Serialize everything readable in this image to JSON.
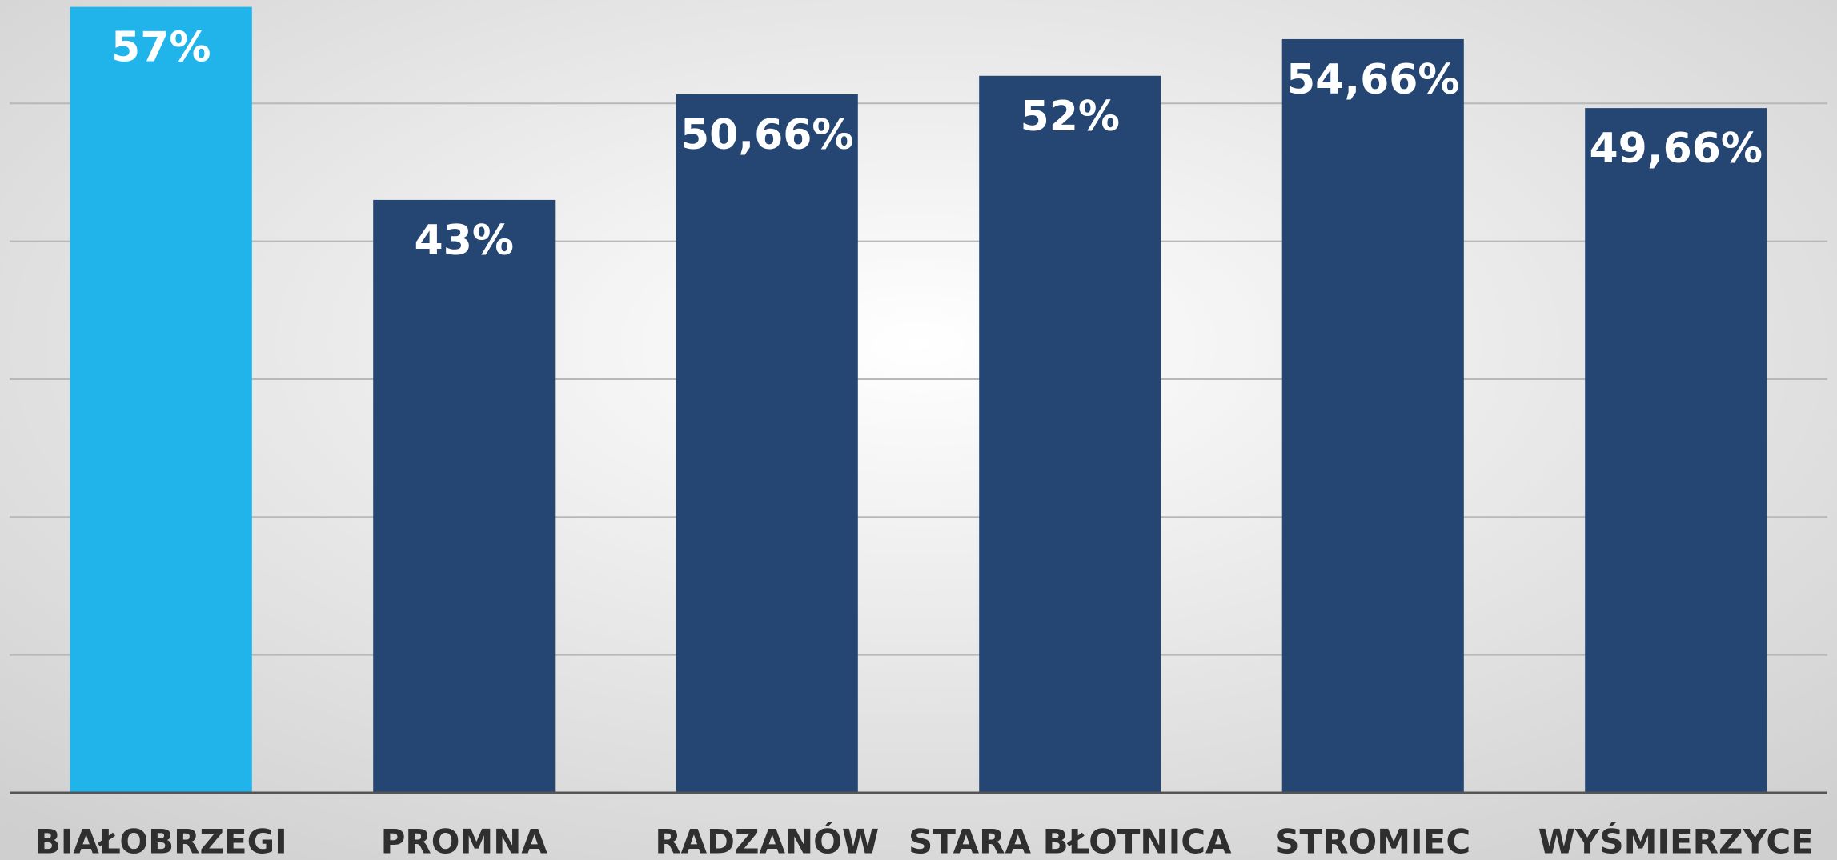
{
  "chart_data": {
    "type": "bar",
    "categories": [
      "BIAŁOBRZEGI",
      "PROMNA",
      "RADZANÓW",
      "STARA BŁOTNICA",
      "STROMIEC",
      "WYŚMIERZYCE"
    ],
    "values": [
      57,
      43,
      50.66,
      52,
      54.66,
      49.66
    ],
    "value_labels": [
      "57%",
      "43%",
      "50,66%",
      "52%",
      "54,66%",
      "49,66%"
    ],
    "colors": [
      "#21b4ea",
      "#254672",
      "#254672",
      "#254672",
      "#254672",
      "#254672"
    ],
    "ylim": [
      0,
      57.5
    ],
    "yticks": [
      0,
      10,
      20,
      30,
      40,
      50
    ],
    "grid": true
  }
}
